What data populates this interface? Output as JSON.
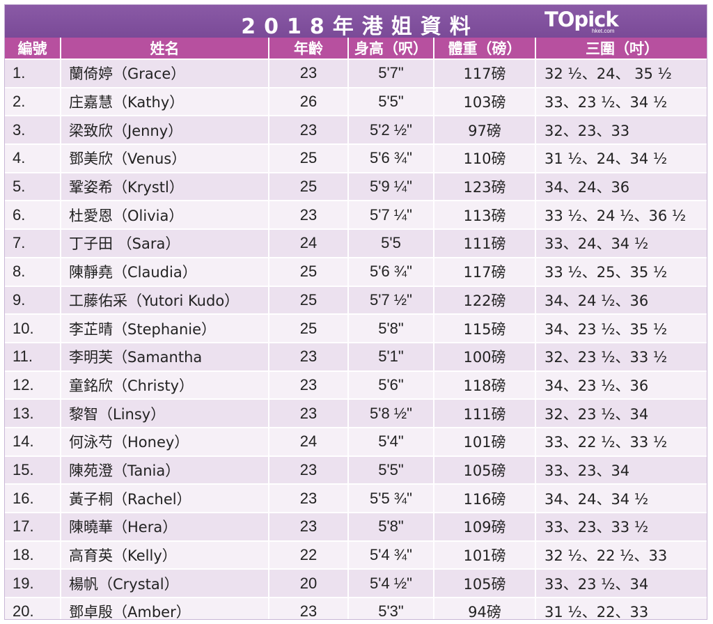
{
  "title": "2018年港姐資料",
  "logo": {
    "main": "TOpick",
    "sub": "hket.com"
  },
  "colors": {
    "title_bar": "#7a4a97",
    "header_row": "#b7509f",
    "row_odd": "#ece1ef",
    "row_even": "#f6f0f7"
  },
  "columns": [
    "編號",
    "姓名",
    "年齡",
    "身高（呎）",
    "體重（磅）",
    "三圍（吋）"
  ],
  "rows": [
    {
      "no": "1.",
      "name": "蘭倚婷（Grace）",
      "age": "23",
      "height": "5'7\"",
      "weight": "117磅",
      "measurements": "32 ½、24、 35 ½"
    },
    {
      "no": "2.",
      "name": "庄嘉慧（Kathy）",
      "age": "26",
      "height": "5'5\"",
      "weight": "103磅",
      "measurements": "33、23 ½、34 ½"
    },
    {
      "no": "3.",
      "name": "梁致欣（Jenny）",
      "age": "23",
      "height": "5'2 ½\"",
      "weight": "97磅",
      "measurements": "32、23、33"
    },
    {
      "no": "4.",
      "name": "鄧美欣（Venus）",
      "age": "25",
      "height": "5'6 ¾\"",
      "weight": "110磅",
      "measurements": "31 ½、24、34 ½"
    },
    {
      "no": "5.",
      "name": "鞏姿希（Krystl）",
      "age": "25",
      "height": "5'9 ¼\"",
      "weight": "123磅",
      "measurements": "34、24、36"
    },
    {
      "no": "6.",
      "name": "杜愛恩（Olivia）",
      "age": "23",
      "height": "5'7 ¼\"",
      "weight": "113磅",
      "measurements": "33 ½、24 ½、36 ½"
    },
    {
      "no": "7.",
      "name": "丁子田 （Sara）",
      "age": "24",
      "height": "5'5",
      "weight": "111磅",
      "measurements": "33、24、34 ½"
    },
    {
      "no": "8.",
      "name": "陳靜堯（Claudia）",
      "age": "25",
      "height": "5'6 ¾\"",
      "weight": "117磅",
      "measurements": "33 ½、25、35 ½"
    },
    {
      "no": "9.",
      "name": "工藤佑采（Yutori Kudo）",
      "age": "25",
      "height": "5'7 ½\"",
      "weight": "122磅",
      "measurements": "34、24 ½、36"
    },
    {
      "no": "10.",
      "name": "李芷晴（Stephanie）",
      "age": "25",
      "height": "5'8\"",
      "weight": "115磅",
      "measurements": "34、23 ½、35 ½"
    },
    {
      "no": "11.",
      "name": "李明芙（Samantha",
      "age": "23",
      "height": "5'1\"",
      "weight": "100磅",
      "measurements": "32、23 ½、33 ½"
    },
    {
      "no": "12.",
      "name": "童銘欣（Christy）",
      "age": "23",
      "height": "5'6\"",
      "weight": "118磅",
      "measurements": "34、23 ½、36"
    },
    {
      "no": "13.",
      "name": "黎智（Linsy）",
      "age": "23",
      "height": "5'8 ½\"",
      "weight": "111磅",
      "measurements": "32、23 ½、34"
    },
    {
      "no": "14.",
      "name": "何泳芍（Honey）",
      "age": "24",
      "height": "5'4\"",
      "weight": "101磅",
      "measurements": "33、22 ½、33 ½"
    },
    {
      "no": "15.",
      "name": "陳苑澄（Tania）",
      "age": "23",
      "height": "5'5\"",
      "weight": "105磅",
      "measurements": "33、23、34"
    },
    {
      "no": "16.",
      "name": "黃子桐（Rachel）",
      "age": "23",
      "height": "5'5 ¾\"",
      "weight": "116磅",
      "measurements": "34、24、34 ½"
    },
    {
      "no": "17.",
      "name": "陳曉華（Hera）",
      "age": "23",
      "height": "5'8\"",
      "weight": "109磅",
      "measurements": "33、23、33 ½"
    },
    {
      "no": "18.",
      "name": "高育英（Kelly）",
      "age": "22",
      "height": "5'4 ¾\"",
      "weight": "101磅",
      "measurements": "32 ½、22 ½、33"
    },
    {
      "no": "19.",
      "name": "楊帆（Crystal）",
      "age": "20",
      "height": "5'4 ½\"",
      "weight": "105磅",
      "measurements": "33、23 ½、34"
    },
    {
      "no": "20.",
      "name": "鄧卓殷（Amber）",
      "age": "23",
      "height": "5'3\"",
      "weight": "94磅",
      "measurements": "31 ½、22、33"
    }
  ]
}
